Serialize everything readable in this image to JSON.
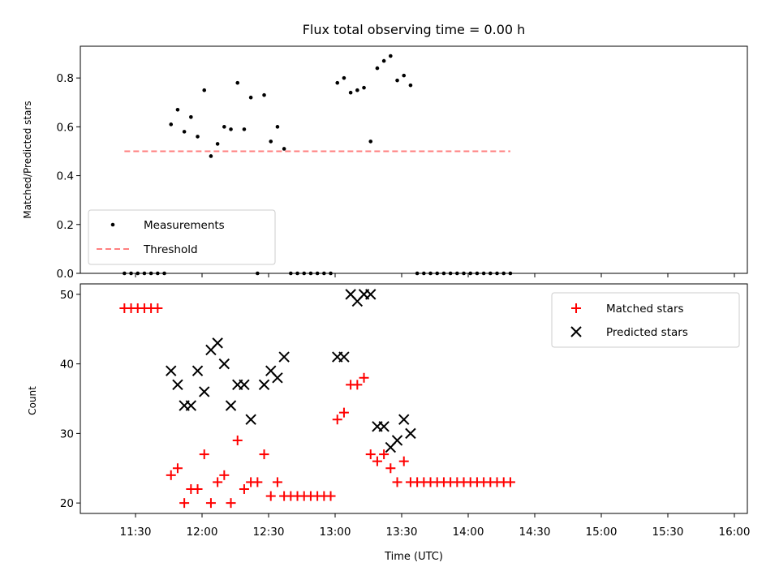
{
  "chart_data": [
    {
      "type": "scatter",
      "title": "Flux total observing time = 0.00 h",
      "ylabel": "Matched/Predicted stars",
      "xlabel": "",
      "ylim": [
        0,
        0.93
      ],
      "yticks": [
        "0.0",
        "0.2",
        "0.4",
        "0.6",
        "0.8"
      ],
      "ytick_values": [
        0.0,
        0.2,
        0.4,
        0.6,
        0.8
      ],
      "legend_position": "lower-left",
      "series": [
        {
          "name": "Measurements",
          "marker": "dot",
          "color": "#000000",
          "points": [
            [
              "11:25",
              0
            ],
            [
              "11:28",
              0
            ],
            [
              "11:31",
              0
            ],
            [
              "11:34",
              0
            ],
            [
              "11:37",
              0
            ],
            [
              "11:40",
              0
            ],
            [
              "11:43",
              0
            ],
            [
              "11:46",
              0.61
            ],
            [
              "11:49",
              0.67
            ],
            [
              "11:52",
              0.58
            ],
            [
              "11:55",
              0.64
            ],
            [
              "11:58",
              0.56
            ],
            [
              "12:01",
              0.75
            ],
            [
              "12:04",
              0.48
            ],
            [
              "12:07",
              0.53
            ],
            [
              "12:10",
              0.6
            ],
            [
              "12:13",
              0.59
            ],
            [
              "12:16",
              0.78
            ],
            [
              "12:19",
              0.59
            ],
            [
              "12:22",
              0.72
            ],
            [
              "12:25",
              0
            ],
            [
              "12:28",
              0.73
            ],
            [
              "12:31",
              0.54
            ],
            [
              "12:34",
              0.6
            ],
            [
              "12:37",
              0.51
            ],
            [
              "12:40",
              0
            ],
            [
              "12:43",
              0
            ],
            [
              "12:46",
              0
            ],
            [
              "12:49",
              0
            ],
            [
              "12:52",
              0
            ],
            [
              "12:55",
              0
            ],
            [
              "12:58",
              0
            ],
            [
              "13:01",
              0.78
            ],
            [
              "13:04",
              0.8
            ],
            [
              "13:07",
              0.74
            ],
            [
              "13:10",
              0.75
            ],
            [
              "13:13",
              0.76
            ],
            [
              "13:16",
              0.54
            ],
            [
              "13:19",
              0.84
            ],
            [
              "13:22",
              0.87
            ],
            [
              "13:25",
              0.89
            ],
            [
              "13:28",
              0.79
            ],
            [
              "13:31",
              0.81
            ],
            [
              "13:34",
              0.77
            ],
            [
              "13:37",
              0
            ],
            [
              "13:40",
              0
            ],
            [
              "13:43",
              0
            ],
            [
              "13:46",
              0
            ],
            [
              "13:49",
              0
            ],
            [
              "13:52",
              0
            ],
            [
              "13:55",
              0
            ],
            [
              "13:58",
              0
            ],
            [
              "14:01",
              0
            ],
            [
              "14:04",
              0
            ],
            [
              "14:07",
              0
            ],
            [
              "14:10",
              0
            ],
            [
              "14:13",
              0
            ],
            [
              "14:16",
              0
            ],
            [
              "14:19",
              0
            ]
          ]
        },
        {
          "name": "Threshold",
          "line": "dashed",
          "color": "#ff7f7f",
          "points": [
            [
              "11:25",
              0.5
            ],
            [
              "14:19",
              0.5
            ]
          ]
        }
      ]
    },
    {
      "type": "scatter",
      "title": "",
      "ylabel": "Count",
      "xlabel": "Time (UTC)",
      "ylim": [
        18.5,
        51.5
      ],
      "yticks": [
        "20",
        "30",
        "40",
        "50"
      ],
      "ytick_values": [
        20,
        30,
        40,
        50
      ],
      "xticks": [
        "11:30",
        "12:00",
        "12:30",
        "13:00",
        "13:30",
        "14:00",
        "14:30",
        "15:00",
        "15:30",
        "16:00"
      ],
      "legend_position": "upper-right",
      "series": [
        {
          "name": "Matched stars",
          "marker": "plus",
          "color": "#ff0000",
          "points": [
            [
              "11:25",
              48
            ],
            [
              "11:28",
              48
            ],
            [
              "11:31",
              48
            ],
            [
              "11:34",
              48
            ],
            [
              "11:37",
              48
            ],
            [
              "11:40",
              48
            ],
            [
              "11:46",
              24
            ],
            [
              "11:49",
              25
            ],
            [
              "11:52",
              20
            ],
            [
              "11:55",
              22
            ],
            [
              "11:58",
              22
            ],
            [
              "12:01",
              27
            ],
            [
              "12:04",
              20
            ],
            [
              "12:07",
              23
            ],
            [
              "12:10",
              24
            ],
            [
              "12:13",
              20
            ],
            [
              "12:16",
              29
            ],
            [
              "12:19",
              22
            ],
            [
              "12:22",
              23
            ],
            [
              "12:25",
              23
            ],
            [
              "12:28",
              27
            ],
            [
              "12:31",
              21
            ],
            [
              "12:34",
              23
            ],
            [
              "12:37",
              21
            ],
            [
              "12:40",
              21
            ],
            [
              "12:43",
              21
            ],
            [
              "12:46",
              21
            ],
            [
              "12:49",
              21
            ],
            [
              "12:52",
              21
            ],
            [
              "12:55",
              21
            ],
            [
              "12:58",
              21
            ],
            [
              "13:01",
              32
            ],
            [
              "13:04",
              33
            ],
            [
              "13:07",
              37
            ],
            [
              "13:10",
              37
            ],
            [
              "13:13",
              38
            ],
            [
              "13:16",
              27
            ],
            [
              "13:19",
              26
            ],
            [
              "13:22",
              27
            ],
            [
              "13:25",
              25
            ],
            [
              "13:28",
              23
            ],
            [
              "13:31",
              26
            ],
            [
              "13:34",
              23
            ],
            [
              "13:37",
              23
            ],
            [
              "13:40",
              23
            ],
            [
              "13:43",
              23
            ],
            [
              "13:46",
              23
            ],
            [
              "13:49",
              23
            ],
            [
              "13:52",
              23
            ],
            [
              "13:55",
              23
            ],
            [
              "13:58",
              23
            ],
            [
              "14:01",
              23
            ],
            [
              "14:04",
              23
            ],
            [
              "14:07",
              23
            ],
            [
              "14:10",
              23
            ],
            [
              "14:13",
              23
            ],
            [
              "14:16",
              23
            ],
            [
              "14:19",
              23
            ]
          ]
        },
        {
          "name": "Predicted stars",
          "marker": "x",
          "color": "#000000",
          "points": [
            [
              "11:46",
              39
            ],
            [
              "11:49",
              37
            ],
            [
              "11:52",
              34
            ],
            [
              "11:55",
              34
            ],
            [
              "11:58",
              39
            ],
            [
              "12:01",
              36
            ],
            [
              "12:04",
              42
            ],
            [
              "12:07",
              43
            ],
            [
              "12:10",
              40
            ],
            [
              "12:13",
              34
            ],
            [
              "12:16",
              37
            ],
            [
              "12:19",
              37
            ],
            [
              "12:22",
              32
            ],
            [
              "12:28",
              37
            ],
            [
              "12:31",
              39
            ],
            [
              "12:34",
              38
            ],
            [
              "12:37",
              41
            ],
            [
              "13:01",
              41
            ],
            [
              "13:04",
              41
            ],
            [
              "13:07",
              50
            ],
            [
              "13:10",
              49
            ],
            [
              "13:13",
              50
            ],
            [
              "13:16",
              50
            ],
            [
              "13:19",
              31
            ],
            [
              "13:22",
              31
            ],
            [
              "13:25",
              28
            ],
            [
              "13:28",
              29
            ],
            [
              "13:31",
              32
            ],
            [
              "13:34",
              30
            ]
          ]
        }
      ]
    }
  ]
}
